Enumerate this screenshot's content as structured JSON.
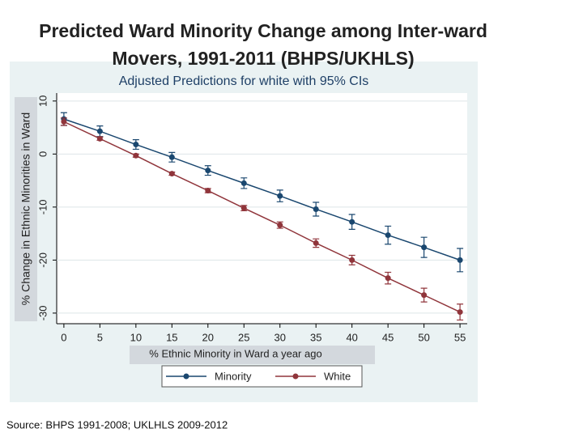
{
  "chart_data": {
    "type": "line",
    "title": [
      "Predicted Ward Minority Change among Inter-ward",
      "Movers, 1991-2011 (BHPS/UKHLS)"
    ],
    "subtitle": "Adjusted Predictions for white with 95% CIs",
    "xlabel": "% Ethnic  Minority in Ward a year ago",
    "ylabel": "% Change in Ethnic Minorities in Ward",
    "source": "Source: BHPS 1991-2008; UKLHLS 2009-2012",
    "x": [
      0,
      5,
      10,
      15,
      20,
      25,
      30,
      35,
      40,
      45,
      50,
      55
    ],
    "series": [
      {
        "name": "Minority",
        "color": "#1a476f",
        "values": [
          6.6,
          4.3,
          1.8,
          -0.6,
          -3.1,
          -5.5,
          -7.9,
          -10.4,
          -12.8,
          -15.3,
          -17.6,
          -20.0
        ],
        "errors": [
          1.2,
          1.0,
          0.9,
          0.9,
          0.9,
          1.0,
          1.1,
          1.3,
          1.4,
          1.7,
          1.9,
          2.2
        ]
      },
      {
        "name": "White",
        "color": "#90353b",
        "values": [
          6.1,
          2.9,
          -0.3,
          -3.7,
          -6.9,
          -10.2,
          -13.4,
          -16.8,
          -20.0,
          -23.4,
          -26.6,
          -29.8
        ],
        "errors": [
          0.7,
          0.3,
          0.3,
          0.3,
          0.4,
          0.5,
          0.6,
          0.8,
          0.9,
          1.1,
          1.3,
          1.5
        ]
      }
    ],
    "xlim": [
      -1,
      56
    ],
    "ylim": [
      -32,
      11.5
    ],
    "xticks": [
      0,
      5,
      10,
      15,
      20,
      25,
      30,
      35,
      40,
      45,
      50,
      55
    ],
    "yticks": [
      -30,
      -20,
      -10,
      0,
      10
    ],
    "grid": true,
    "legend": "bottom"
  }
}
